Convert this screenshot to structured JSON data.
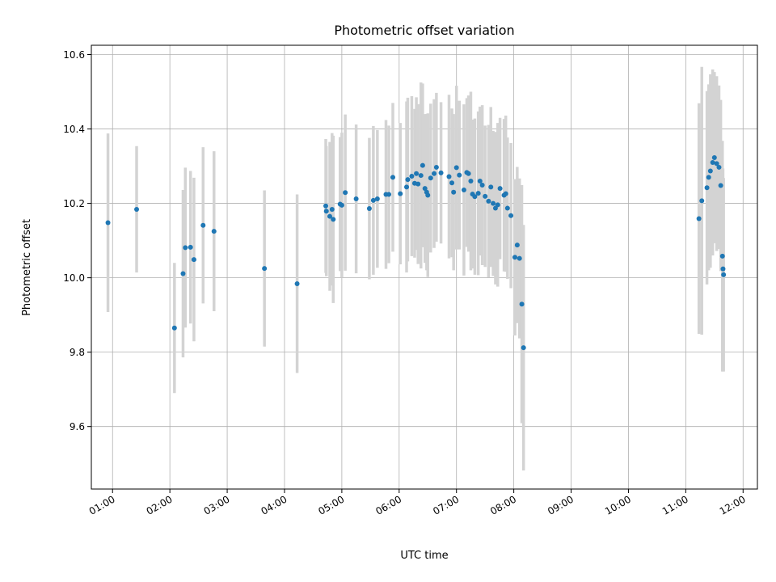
{
  "chart_data": {
    "type": "scatter",
    "title": "Photometric offset variation",
    "xlabel": "UTC time",
    "ylabel": "Photometric offset",
    "xlim": [
      0.63,
      12.25
    ],
    "ylim": [
      9.432,
      10.625
    ],
    "grid": true,
    "x_ticks": [
      1,
      2,
      3,
      4,
      5,
      6,
      7,
      8,
      9,
      10,
      11,
      12
    ],
    "x_tick_labels": [
      "01:00",
      "02:00",
      "03:00",
      "04:00",
      "05:00",
      "06:00",
      "07:00",
      "08:00",
      "09:00",
      "10:00",
      "11:00",
      "12:00"
    ],
    "y_ticks": [
      9.6,
      9.8,
      10.0,
      10.2,
      10.4,
      10.6
    ],
    "y_tick_labels": [
      "9.6",
      "9.8",
      "10.0",
      "10.2",
      "10.4",
      "10.6"
    ],
    "point_color": "#1f77b4",
    "errorbar_color": "#d3d3d3",
    "series": [
      {
        "name": "offset",
        "x": [
          0.92,
          1.42,
          2.08,
          2.23,
          2.27,
          2.36,
          2.42,
          2.58,
          2.77,
          3.65,
          4.22,
          4.72,
          4.73,
          4.79,
          4.83,
          4.85,
          4.97,
          5.0,
          5.06,
          5.25,
          5.48,
          5.55,
          5.62,
          5.77,
          5.82,
          5.89,
          6.02,
          6.13,
          6.15,
          6.22,
          6.27,
          6.3,
          6.33,
          6.38,
          6.41,
          6.45,
          6.48,
          6.5,
          6.55,
          6.61,
          6.65,
          6.73,
          6.87,
          6.92,
          6.95,
          7.0,
          7.05,
          7.13,
          7.18,
          7.21,
          7.25,
          7.28,
          7.32,
          7.38,
          7.41,
          7.45,
          7.5,
          7.56,
          7.6,
          7.64,
          7.68,
          7.72,
          7.76,
          7.83,
          7.86,
          7.89,
          7.95,
          8.02,
          8.06,
          8.1,
          8.14,
          8.17,
          11.23,
          11.28,
          11.37,
          11.4,
          11.43,
          11.47,
          11.5,
          11.54,
          11.58,
          11.61,
          11.64,
          11.65,
          11.66
        ],
        "y": [
          10.148,
          10.184,
          9.865,
          10.011,
          10.081,
          10.082,
          10.049,
          10.141,
          10.125,
          10.025,
          9.984,
          10.193,
          10.179,
          10.165,
          10.184,
          10.157,
          10.198,
          10.195,
          10.229,
          10.212,
          10.186,
          10.208,
          10.212,
          10.224,
          10.224,
          10.27,
          10.226,
          10.244,
          10.264,
          10.273,
          10.254,
          10.28,
          10.252,
          10.275,
          10.302,
          10.24,
          10.23,
          10.222,
          10.268,
          10.28,
          10.297,
          10.282,
          10.272,
          10.255,
          10.23,
          10.296,
          10.276,
          10.236,
          10.283,
          10.28,
          10.26,
          10.225,
          10.218,
          10.227,
          10.26,
          10.249,
          10.219,
          10.206,
          10.244,
          10.2,
          10.187,
          10.196,
          10.24,
          10.222,
          10.226,
          10.187,
          10.167,
          10.055,
          10.088,
          10.052,
          9.929,
          9.812,
          10.159,
          10.207,
          10.242,
          10.27,
          10.287,
          10.31,
          10.323,
          10.307,
          10.297,
          10.248,
          10.058,
          10.024,
          10.008
        ],
        "err": [
          0.24,
          0.17,
          0.175,
          0.225,
          0.215,
          0.205,
          0.22,
          0.21,
          0.215,
          0.21,
          0.24,
          0.18,
          0.175,
          0.2,
          0.205,
          0.225,
          0.18,
          0.195,
          0.21,
          0.2,
          0.19,
          0.2,
          0.185,
          0.2,
          0.185,
          0.2,
          0.19,
          0.23,
          0.22,
          0.215,
          0.2,
          0.205,
          0.215,
          0.25,
          0.22,
          0.2,
          0.21,
          0.22,
          0.2,
          0.2,
          0.2,
          0.19,
          0.22,
          0.2,
          0.21,
          0.22,
          0.2,
          0.23,
          0.2,
          0.21,
          0.24,
          0.2,
          0.21,
          0.22,
          0.2,
          0.215,
          0.19,
          0.205,
          0.215,
          0.195,
          0.205,
          0.22,
          0.19,
          0.205,
          0.21,
          0.19,
          0.195,
          0.21,
          0.21,
          0.215,
          0.32,
          0.33,
          0.31,
          0.36,
          0.26,
          0.25,
          0.26,
          0.25,
          0.23,
          0.235,
          0.22,
          0.23,
          0.31,
          0.27,
          0.26
        ]
      }
    ]
  }
}
